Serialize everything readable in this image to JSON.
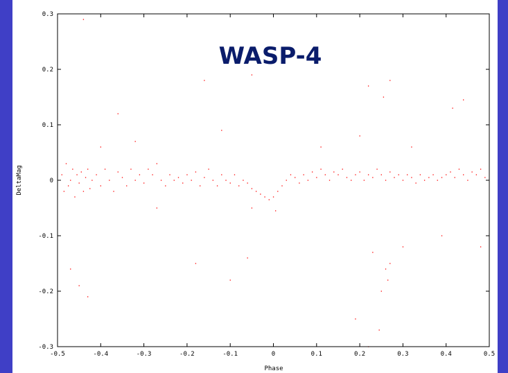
{
  "chart_data": {
    "type": "scatter",
    "title": "WASP-4",
    "xlabel": "Phase",
    "ylabel": "DeltaMag",
    "xlim": [
      -0.5,
      0.5
    ],
    "ylim": [
      -0.3,
      0.3
    ],
    "xticks": [
      -0.5,
      -0.4,
      -0.3,
      -0.2,
      -0.1,
      0,
      0.1,
      0.2,
      0.3,
      0.4,
      0.5
    ],
    "xtick_labels": [
      "-0.5",
      "-0.4",
      "-0.3",
      "-0.2",
      "-0.1",
      "0",
      "0.1",
      "0.2",
      "0.3",
      "0.4",
      "0.5"
    ],
    "yticks": [
      -0.3,
      -0.2,
      -0.1,
      0,
      0.1,
      0.2,
      0.3
    ],
    "ytick_labels": [
      "-0.3",
      "-0.2",
      "-0.1",
      "0",
      "0.1",
      "0.2",
      "0.3"
    ],
    "grid": false,
    "legend": "none",
    "marker_color": "#ff0000",
    "series": [
      {
        "points": [
          [
            -0.49,
            0.01
          ],
          [
            -0.485,
            -0.02
          ],
          [
            -0.48,
            0.03
          ],
          [
            -0.475,
            -0.01
          ],
          [
            -0.47,
            0.0
          ],
          [
            -0.465,
            0.02
          ],
          [
            -0.46,
            -0.03
          ],
          [
            -0.455,
            0.01
          ],
          [
            -0.45,
            -0.005
          ],
          [
            -0.445,
            0.015
          ],
          [
            -0.44,
            -0.02
          ],
          [
            -0.435,
            0.005
          ],
          [
            -0.43,
            0.02
          ],
          [
            -0.425,
            -0.015
          ],
          [
            -0.42,
            0.0
          ],
          [
            -0.41,
            0.01
          ],
          [
            -0.4,
            -0.01
          ],
          [
            -0.39,
            0.02
          ],
          [
            -0.38,
            0.0
          ],
          [
            -0.37,
            -0.02
          ],
          [
            -0.36,
            0.015
          ],
          [
            -0.35,
            0.005
          ],
          [
            -0.34,
            -0.01
          ],
          [
            -0.33,
            0.02
          ],
          [
            -0.32,
            0.0
          ],
          [
            -0.31,
            0.01
          ],
          [
            -0.3,
            -0.005
          ],
          [
            -0.29,
            0.02
          ],
          [
            -0.28,
            0.01
          ],
          [
            -0.27,
            0.03
          ],
          [
            -0.26,
            0.0
          ],
          [
            -0.25,
            -0.01
          ],
          [
            -0.24,
            0.01
          ],
          [
            -0.23,
            0.0
          ],
          [
            -0.22,
            0.005
          ],
          [
            -0.21,
            -0.005
          ],
          [
            -0.2,
            0.01
          ],
          [
            -0.19,
            0.0
          ],
          [
            -0.18,
            0.015
          ],
          [
            -0.17,
            -0.01
          ],
          [
            -0.16,
            0.005
          ],
          [
            -0.15,
            0.02
          ],
          [
            -0.14,
            0.0
          ],
          [
            -0.13,
            -0.01
          ],
          [
            -0.12,
            0.01
          ],
          [
            -0.11,
            0.0
          ],
          [
            -0.1,
            -0.005
          ],
          [
            -0.09,
            0.01
          ],
          [
            -0.08,
            -0.01
          ],
          [
            -0.07,
            0.0
          ],
          [
            -0.06,
            -0.005
          ],
          [
            -0.05,
            -0.015
          ],
          [
            -0.04,
            -0.02
          ],
          [
            -0.03,
            -0.025
          ],
          [
            -0.02,
            -0.03
          ],
          [
            -0.01,
            -0.035
          ],
          [
            0.0,
            -0.03
          ],
          [
            0.01,
            -0.02
          ],
          [
            0.02,
            -0.01
          ],
          [
            0.03,
            0.0
          ],
          [
            0.04,
            0.01
          ],
          [
            0.05,
            0.005
          ],
          [
            0.06,
            -0.005
          ],
          [
            0.07,
            0.01
          ],
          [
            0.08,
            0.0
          ],
          [
            0.09,
            0.015
          ],
          [
            0.1,
            0.005
          ],
          [
            0.11,
            0.02
          ],
          [
            0.12,
            0.01
          ],
          [
            0.13,
            0.0
          ],
          [
            0.14,
            0.015
          ],
          [
            0.15,
            0.01
          ],
          [
            0.16,
            0.02
          ],
          [
            0.17,
            0.005
          ],
          [
            0.18,
            0.0
          ],
          [
            0.19,
            0.01
          ],
          [
            0.2,
            0.015
          ],
          [
            0.21,
            0.0
          ],
          [
            0.22,
            0.01
          ],
          [
            0.23,
            0.005
          ],
          [
            0.24,
            0.02
          ],
          [
            0.25,
            0.01
          ],
          [
            0.26,
            0.0
          ],
          [
            0.27,
            0.015
          ],
          [
            0.28,
            0.005
          ],
          [
            0.29,
            0.01
          ],
          [
            0.3,
            0.0
          ],
          [
            0.31,
            0.01
          ],
          [
            0.32,
            0.005
          ],
          [
            0.33,
            -0.005
          ],
          [
            0.34,
            0.01
          ],
          [
            0.35,
            0.0
          ],
          [
            0.36,
            0.005
          ],
          [
            0.37,
            0.01
          ],
          [
            0.38,
            0.0
          ],
          [
            0.39,
            0.005
          ],
          [
            0.4,
            0.01
          ],
          [
            0.41,
            0.015
          ],
          [
            0.42,
            0.005
          ],
          [
            0.43,
            0.02
          ],
          [
            0.44,
            0.01
          ],
          [
            0.45,
            0.0
          ],
          [
            0.46,
            0.015
          ],
          [
            0.47,
            0.01
          ],
          [
            0.48,
            0.02
          ],
          [
            0.49,
            0.005
          ],
          [
            -0.44,
            0.29
          ],
          [
            -0.16,
            0.18
          ],
          [
            0.22,
            0.17
          ],
          [
            0.27,
            0.18
          ],
          [
            0.255,
            0.15
          ],
          [
            -0.05,
            0.19
          ],
          [
            -0.36,
            0.12
          ],
          [
            0.415,
            0.13
          ],
          [
            0.44,
            0.145
          ],
          [
            -0.47,
            -0.16
          ],
          [
            -0.45,
            -0.19
          ],
          [
            -0.43,
            -0.21
          ],
          [
            -0.18,
            -0.15
          ],
          [
            -0.1,
            -0.18
          ],
          [
            -0.06,
            -0.14
          ],
          [
            0.23,
            -0.13
          ],
          [
            0.26,
            -0.16
          ],
          [
            0.27,
            -0.15
          ],
          [
            0.19,
            -0.25
          ],
          [
            0.22,
            -0.3
          ],
          [
            0.245,
            -0.27
          ],
          [
            0.25,
            -0.2
          ],
          [
            0.265,
            -0.18
          ],
          [
            0.3,
            -0.12
          ],
          [
            0.39,
            -0.1
          ],
          [
            0.48,
            -0.12
          ],
          [
            -0.27,
            -0.05
          ],
          [
            -0.05,
            -0.05
          ],
          [
            0.005,
            -0.055
          ],
          [
            0.11,
            0.06
          ],
          [
            0.2,
            0.08
          ],
          [
            0.32,
            0.06
          ],
          [
            -0.4,
            0.06
          ],
          [
            -0.32,
            0.07
          ],
          [
            -0.12,
            0.09
          ]
        ]
      }
    ]
  }
}
